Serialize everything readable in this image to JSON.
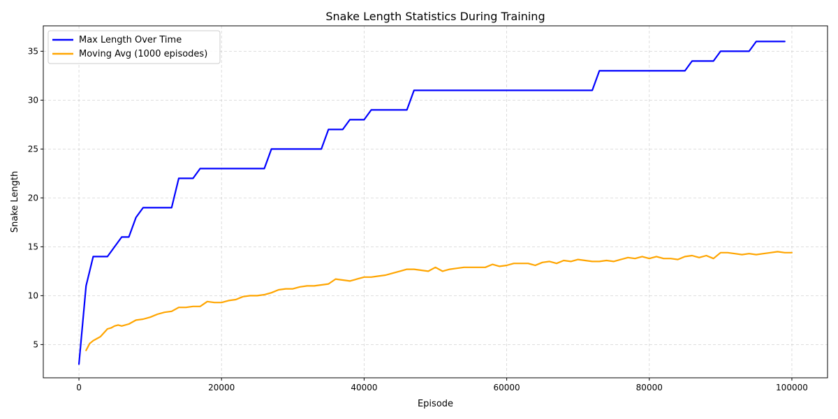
{
  "chart_data": {
    "type": "line",
    "title": "Snake Length Statistics During Training",
    "xlabel": "Episode",
    "ylabel": "Snake Length",
    "xlim": [
      -5000,
      105000
    ],
    "ylim": [
      1.6,
      37.6
    ],
    "xticks": [
      0,
      20000,
      40000,
      60000,
      80000,
      100000
    ],
    "yticks": [
      5,
      10,
      15,
      20,
      25,
      30,
      35
    ],
    "grid": true,
    "legend_position": "top-left",
    "series": [
      {
        "name": "Max Length Over Time",
        "color": "#0000ff",
        "x": [
          0,
          1000,
          2000,
          3000,
          4000,
          5000,
          6000,
          7000,
          8000,
          9000,
          10000,
          11000,
          12000,
          13000,
          14000,
          15000,
          16000,
          17000,
          18000,
          19000,
          20000,
          21000,
          22000,
          23000,
          24000,
          25000,
          26000,
          27000,
          28000,
          29000,
          30000,
          31000,
          32000,
          33000,
          34000,
          35000,
          36000,
          37000,
          38000,
          39000,
          40000,
          41000,
          42000,
          43000,
          44000,
          45000,
          46000,
          47000,
          48000,
          49000,
          50000,
          51000,
          52000,
          53000,
          54000,
          55000,
          56000,
          57000,
          58000,
          59000,
          60000,
          61000,
          62000,
          63000,
          64000,
          65000,
          66000,
          67000,
          68000,
          69000,
          70000,
          71000,
          72000,
          73000,
          74000,
          75000,
          76000,
          77000,
          78000,
          79000,
          80000,
          81000,
          82000,
          83000,
          84000,
          85000,
          86000,
          87000,
          88000,
          89000,
          90000,
          91000,
          92000,
          93000,
          94000,
          95000,
          96000,
          97000,
          98000,
          99000
        ],
        "y": [
          3,
          11,
          14,
          14,
          14,
          15,
          16,
          16,
          18,
          19,
          19,
          19,
          19,
          19,
          22,
          22,
          22,
          23,
          23,
          23,
          23,
          23,
          23,
          23,
          23,
          23,
          23,
          25,
          25,
          25,
          25,
          25,
          25,
          25,
          25,
          27,
          27,
          27,
          28,
          28,
          28,
          29,
          29,
          29,
          29,
          29,
          29,
          31,
          31,
          31,
          31,
          31,
          31,
          31,
          31,
          31,
          31,
          31,
          31,
          31,
          31,
          31,
          31,
          31,
          31,
          31,
          31,
          31,
          31,
          31,
          31,
          31,
          31,
          33,
          33,
          33,
          33,
          33,
          33,
          33,
          33,
          33,
          33,
          33,
          33,
          33,
          34,
          34,
          34,
          34,
          35,
          35,
          35,
          35,
          35,
          36,
          36,
          36,
          36,
          36
        ]
      },
      {
        "name": "Moving Avg (1000 episodes)",
        "color": "#ffa500",
        "x": [
          1000,
          1500,
          2000,
          2500,
          3000,
          3500,
          4000,
          4500,
          5000,
          5500,
          6000,
          7000,
          8000,
          9000,
          10000,
          11000,
          12000,
          13000,
          14000,
          15000,
          16000,
          17000,
          18000,
          19000,
          20000,
          21000,
          22000,
          23000,
          24000,
          25000,
          26000,
          27000,
          28000,
          29000,
          30000,
          31000,
          32000,
          33000,
          34000,
          35000,
          36000,
          37000,
          38000,
          39000,
          40000,
          41000,
          42000,
          43000,
          44000,
          45000,
          46000,
          47000,
          48000,
          49000,
          50000,
          51000,
          52000,
          53000,
          54000,
          55000,
          56000,
          57000,
          58000,
          59000,
          60000,
          61000,
          62000,
          63000,
          64000,
          65000,
          66000,
          67000,
          68000,
          69000,
          70000,
          71000,
          72000,
          73000,
          74000,
          75000,
          76000,
          77000,
          78000,
          79000,
          80000,
          81000,
          82000,
          83000,
          84000,
          85000,
          86000,
          87000,
          88000,
          89000,
          90000,
          91000,
          92000,
          93000,
          94000,
          95000,
          96000,
          97000,
          98000,
          99000,
          100000
        ],
        "y": [
          4.4,
          5.1,
          5.4,
          5.6,
          5.8,
          6.2,
          6.6,
          6.7,
          6.9,
          7.0,
          6.9,
          7.1,
          7.5,
          7.6,
          7.8,
          8.1,
          8.3,
          8.4,
          8.8,
          8.8,
          8.9,
          8.9,
          9.4,
          9.3,
          9.3,
          9.5,
          9.6,
          9.9,
          10.0,
          10.0,
          10.1,
          10.3,
          10.6,
          10.7,
          10.7,
          10.9,
          11.0,
          11.0,
          11.1,
          11.2,
          11.7,
          11.6,
          11.5,
          11.7,
          11.9,
          11.9,
          12.0,
          12.1,
          12.3,
          12.5,
          12.7,
          12.7,
          12.6,
          12.5,
          12.9,
          12.5,
          12.7,
          12.8,
          12.9,
          12.9,
          12.9,
          12.9,
          13.2,
          13.0,
          13.1,
          13.3,
          13.3,
          13.3,
          13.1,
          13.4,
          13.5,
          13.3,
          13.6,
          13.5,
          13.7,
          13.6,
          13.5,
          13.5,
          13.6,
          13.5,
          13.7,
          13.9,
          13.8,
          14.0,
          13.8,
          14.0,
          13.8,
          13.8,
          13.7,
          14.0,
          14.1,
          13.9,
          14.1,
          13.8,
          14.4,
          14.4,
          14.3,
          14.2,
          14.3,
          14.2,
          14.3,
          14.4,
          14.5,
          14.4,
          14.4
        ]
      }
    ]
  }
}
